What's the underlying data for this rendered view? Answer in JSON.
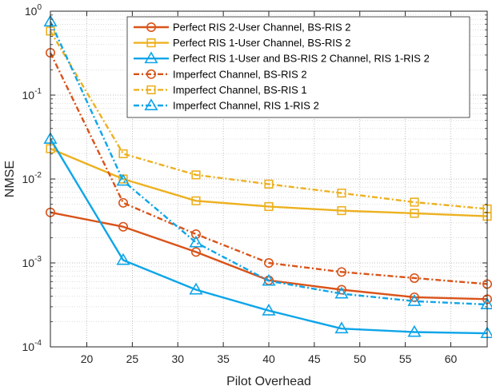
{
  "chart_data": {
    "type": "line",
    "xlabel": "Pilot Overhead",
    "ylabel": "NMSE",
    "xlim": [
      16,
      64
    ],
    "ylim": [
      0.0001,
      1
    ],
    "yscale": "log",
    "grid": true,
    "legend_position": "top-right",
    "x": [
      16,
      24,
      32,
      40,
      48,
      56,
      64
    ],
    "xticks": [
      20,
      25,
      30,
      35,
      40,
      45,
      50,
      55,
      60
    ],
    "xtick_labels": [
      "20",
      "25",
      "30",
      "35",
      "40",
      "45",
      "50",
      "55",
      "60"
    ],
    "yticks": [
      {
        "value": 1,
        "base": "10",
        "exp": "0"
      },
      {
        "value": 0.1,
        "base": "10",
        "exp": "-1"
      },
      {
        "value": 0.01,
        "base": "10",
        "exp": "-2"
      },
      {
        "value": 0.001,
        "base": "10",
        "exp": "-3"
      },
      {
        "value": 0.0001,
        "base": "10",
        "exp": "-4"
      }
    ],
    "series": [
      {
        "name": "Perfect RIS 2-User Channel, BS-RIS 2",
        "color": "#D95319",
        "dash": "solid",
        "marker": "circle",
        "values": [
          0.004,
          0.0027,
          0.00135,
          0.00062,
          0.00048,
          0.00039,
          0.00037
        ]
      },
      {
        "name": "Perfect RIS 1-User Channel, BS-RIS 2",
        "color": "#EDB120",
        "dash": "solid",
        "marker": "square",
        "values": [
          0.023,
          0.01,
          0.0055,
          0.0047,
          0.0042,
          0.0039,
          0.0036
        ]
      },
      {
        "name": "Perfect RIS 1-User and BS-RIS 2 Channel, RIS 1-RIS 2",
        "color": "#0EA5E9",
        "dash": "solid",
        "marker": "triangle",
        "values": [
          0.03,
          0.00108,
          0.00048,
          0.00027,
          0.000165,
          0.00015,
          0.000145
        ]
      },
      {
        "name": "Imperfect Channel, BS-RIS 2",
        "color": "#D95319",
        "dash": "dashdot",
        "marker": "circle",
        "values": [
          0.32,
          0.0052,
          0.0022,
          0.001,
          0.00078,
          0.00066,
          0.00056
        ]
      },
      {
        "name": "Imperfect Channel, BS-RIS 1",
        "color": "#EDB120",
        "dash": "dashdot",
        "marker": "square",
        "values": [
          0.58,
          0.02,
          0.0112,
          0.0087,
          0.0068,
          0.0053,
          0.0044
        ]
      },
      {
        "name": "Imperfect Channel, RIS 1-RIS 2",
        "color": "#0EA5E9",
        "dash": "dashdot",
        "marker": "triangle",
        "values": [
          0.75,
          0.0095,
          0.00175,
          0.00061,
          0.00043,
          0.00035,
          0.00032
        ]
      }
    ]
  }
}
